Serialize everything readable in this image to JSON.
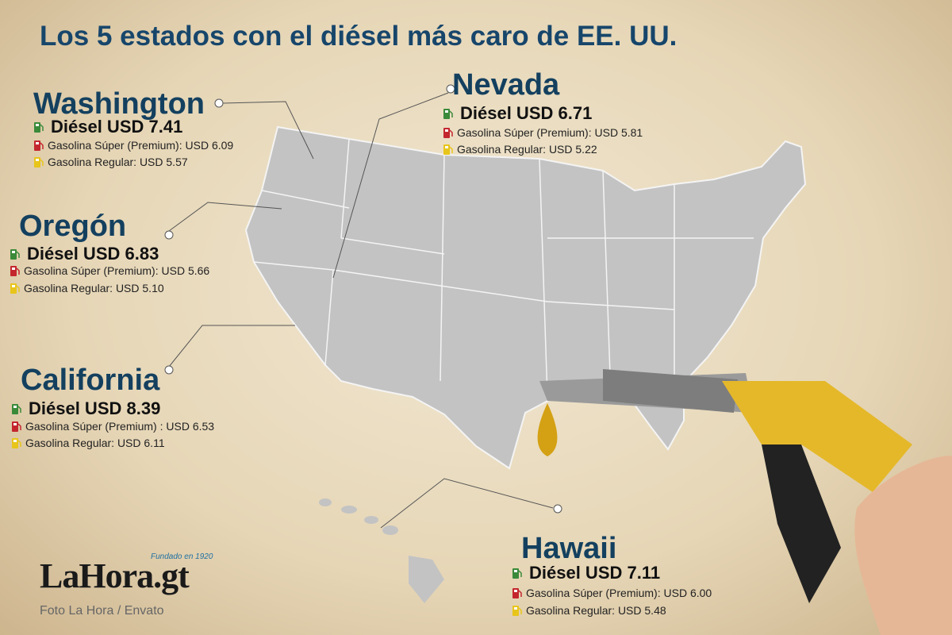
{
  "title": "Los 5 estados con el diésel más caro de EE. UU.",
  "states": [
    {
      "name": "Washington",
      "diesel": "Diésel  USD 7.41",
      "premium": "Gasolina Súper (Premium): USD 6.09",
      "regular": "Gasolina Regular: USD 5.57"
    },
    {
      "name": "Oregón",
      "diesel": "Diésel  USD 6.83",
      "premium": "Gasolina Súper (Premium): USD 5.66",
      "regular": "Gasolina Regular: USD 5.10"
    },
    {
      "name": "California",
      "diesel": "Diésel  USD 8.39",
      "premium": "Gasolina Súper (Premium) : USD 6.53",
      "regular": "Gasolina Regular: USD 6.11"
    },
    {
      "name": "Nevada",
      "diesel": "Diésel  USD 6.71",
      "premium": "Gasolina Súper (Premium): USD 5.81",
      "regular": "Gasolina Regular: USD 5.22"
    },
    {
      "name": "Hawaii",
      "diesel": "Diésel  USD 7.11",
      "premium": "Gasolina Súper (Premium): USD 6.00",
      "regular": "Gasolina Regular: USD 5.48"
    }
  ],
  "logo": {
    "name": "LaHora.gt",
    "tagline": "Fundado en 1920"
  },
  "credit": "Foto La Hora / Envato"
}
